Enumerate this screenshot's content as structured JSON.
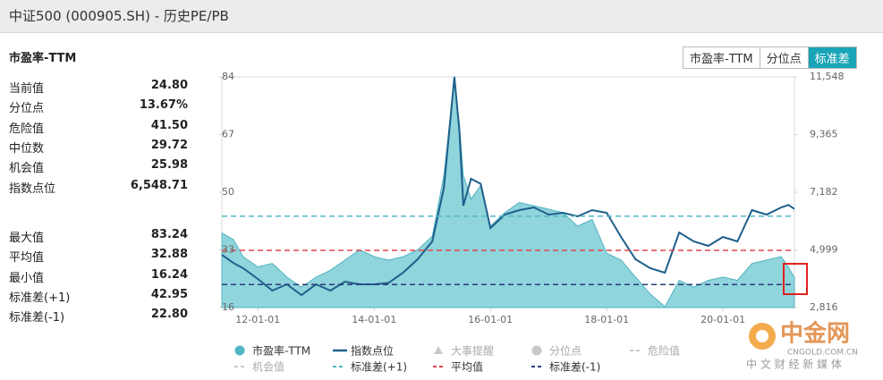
{
  "header": {
    "title": "中证500 (000905.SH) - 历史PE/PB"
  },
  "tabs": [
    {
      "label": "市盈率-TTM",
      "active": false
    },
    {
      "label": "分位点",
      "active": false
    },
    {
      "label": "标准差",
      "active": true
    }
  ],
  "stats": [
    [
      {
        "label": "当前值",
        "value": "24.80"
      },
      {
        "label": "分位点",
        "value": "13.67%"
      },
      {
        "label": "危险值",
        "value": "41.50"
      },
      {
        "label": "中位数",
        "value": "29.72"
      },
      {
        "label": "机会值",
        "value": "25.98"
      },
      {
        "label": "指数点位",
        "value": "6,548.71"
      }
    ],
    [
      {
        "label": "最大值",
        "value": "83.24"
      },
      {
        "label": "平均值",
        "value": "32.88"
      },
      {
        "label": "最小值",
        "value": "16.24"
      },
      {
        "label": "标准差(+1)",
        "value": "42.95"
      },
      {
        "label": "标准差(-1)",
        "value": "22.80"
      }
    ]
  ],
  "watermark": {
    "logo": "中金网",
    "url": "CNGOLD.COM.CN",
    "slogan": "中 文 财 经 新 媒 体"
  },
  "chart_data": {
    "type": "line",
    "title": "市盈率-TTM",
    "x": [
      "2011-05-20",
      "2011-08-01",
      "2011-10-01",
      "2012-01-01",
      "2012-04-01",
      "2012-07-01",
      "2012-10-01",
      "2013-01-01",
      "2013-04-01",
      "2013-07-01",
      "2013-10-01",
      "2014-01-01",
      "2014-04-01",
      "2014-07-01",
      "2014-10-01",
      "2015-01-01",
      "2015-03-15",
      "2015-05-20",
      "2015-06-20",
      "2015-07-15",
      "2015-09-01",
      "2015-11-01",
      "2016-01-01",
      "2016-04-01",
      "2016-07-01",
      "2016-10-01",
      "2017-01-01",
      "2017-04-01",
      "2017-07-01",
      "2017-10-01",
      "2018-01-01",
      "2018-04-01",
      "2018-07-01",
      "2018-10-01",
      "2019-01-01",
      "2019-04-01",
      "2019-07-01",
      "2019-10-01",
      "2020-01-01",
      "2020-04-01",
      "2020-07-01",
      "2020-10-01",
      "2021-01-01",
      "2021-02-15",
      "2021-03-25"
    ],
    "series": [
      {
        "name": "市盈率-TTM",
        "color": "#7ccdd6",
        "style": "area",
        "values": [
          38,
          36,
          31,
          28,
          29,
          25,
          22,
          25,
          27,
          30,
          33,
          31,
          30,
          31,
          33,
          37,
          55,
          83.24,
          70,
          55,
          48,
          52,
          40,
          44,
          47,
          46,
          45,
          44,
          40,
          42,
          32,
          30,
          25,
          20,
          16.24,
          24,
          22,
          24,
          25,
          24,
          29,
          30,
          31,
          28,
          24.8
        ]
      },
      {
        "name": "指数点位",
        "color": "#1f5f8b",
        "style": "line",
        "axis": "y2",
        "values": [
          4813,
          4500,
          4305,
          3899,
          3459,
          3696,
          3290,
          3696,
          3459,
          3797,
          3696,
          3696,
          3750,
          4136,
          4643,
          5320,
          7351,
          11548,
          9500,
          6674,
          7689,
          7500,
          5828,
          6335,
          6505,
          6606,
          6335,
          6403,
          6268,
          6505,
          6403,
          5489,
          4643,
          4305,
          4136,
          5659,
          5320,
          5151,
          5489,
          5320,
          6505,
          6335,
          6606,
          6700,
          6548.71
        ]
      }
    ],
    "ref_lines": [
      {
        "name": "标准差(+1)",
        "value": 42.95,
        "color": "#4fb8c4"
      },
      {
        "name": "平均值",
        "value": 32.88,
        "color": "#e0474c"
      },
      {
        "name": "标准差(-1)",
        "value": 22.8,
        "color": "#2a3d7a"
      }
    ],
    "legend_extra": [
      {
        "name": "大事提醒",
        "symbol": "triangle",
        "color": "#c8c8c8"
      },
      {
        "name": "分位点",
        "symbol": "circle",
        "color": "#c8c8c8"
      },
      {
        "name": "危险值",
        "symbol": "dash",
        "color": "#c8c8c8"
      },
      {
        "name": "机会值",
        "symbol": "dash",
        "color": "#c8c8c8"
      }
    ],
    "xlim": [
      "2011-05-20",
      "2021-03-25"
    ],
    "xticks": [
      {
        "value": "2012-01-01",
        "label": "12-01-01"
      },
      {
        "value": "2014-01-01",
        "label": "14-01-01"
      },
      {
        "value": "2016-01-01",
        "label": "16-01-01"
      },
      {
        "value": "2018-01-01",
        "label": "18-01-01"
      },
      {
        "value": "2020-01-01",
        "label": "20-01-01"
      }
    ],
    "ylim": [
      16,
      84
    ],
    "yticks": [
      16,
      33,
      50,
      67,
      84
    ],
    "y2lim": [
      2816,
      11548
    ],
    "y2ticks": [
      {
        "value": 2816,
        "label": "2,816"
      },
      {
        "value": 4999,
        "label": "4,999"
      },
      {
        "value": 7182,
        "label": "7,182"
      },
      {
        "value": 9365,
        "label": "9,365"
      },
      {
        "value": 11548,
        "label": "11,548"
      }
    ]
  }
}
